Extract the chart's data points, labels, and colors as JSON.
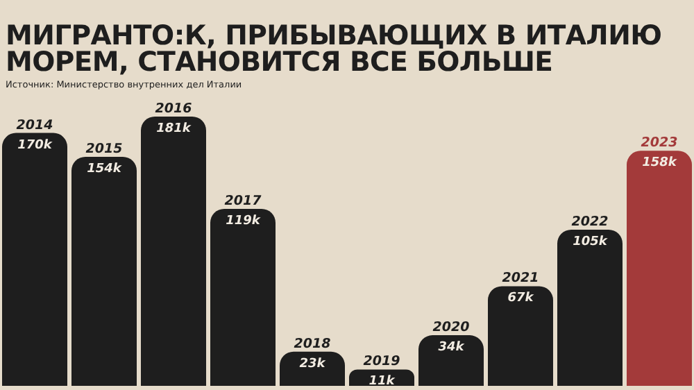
{
  "chart_data": {
    "type": "bar",
    "title": "МИГРАНТО:К, ПРИБЫВАЮЩИХ В ИТАЛИЮ МОРЕМ, СТАНОВИТСЯ ВСЕ БОЛЬШЕ",
    "subtitle": "Источник: Министерство внутренних дел Италии",
    "categories": [
      "2014",
      "2015",
      "2016",
      "2017",
      "2018",
      "2019",
      "2020",
      "2021",
      "2022",
      "2023"
    ],
    "values": [
      170,
      154,
      181,
      119,
      23,
      11,
      34,
      67,
      105,
      158
    ],
    "value_labels": [
      "170k",
      "154k",
      "181k",
      "119k",
      "23k",
      "11k",
      "34k",
      "67k",
      "105k",
      "158k"
    ],
    "colors": [
      "#1e1e1e",
      "#1e1e1e",
      "#1e1e1e",
      "#1e1e1e",
      "#1e1e1e",
      "#1e1e1e",
      "#1e1e1e",
      "#1e1e1e",
      "#1e1e1e",
      "#a33a3a"
    ],
    "legend": false,
    "grid": false
  }
}
